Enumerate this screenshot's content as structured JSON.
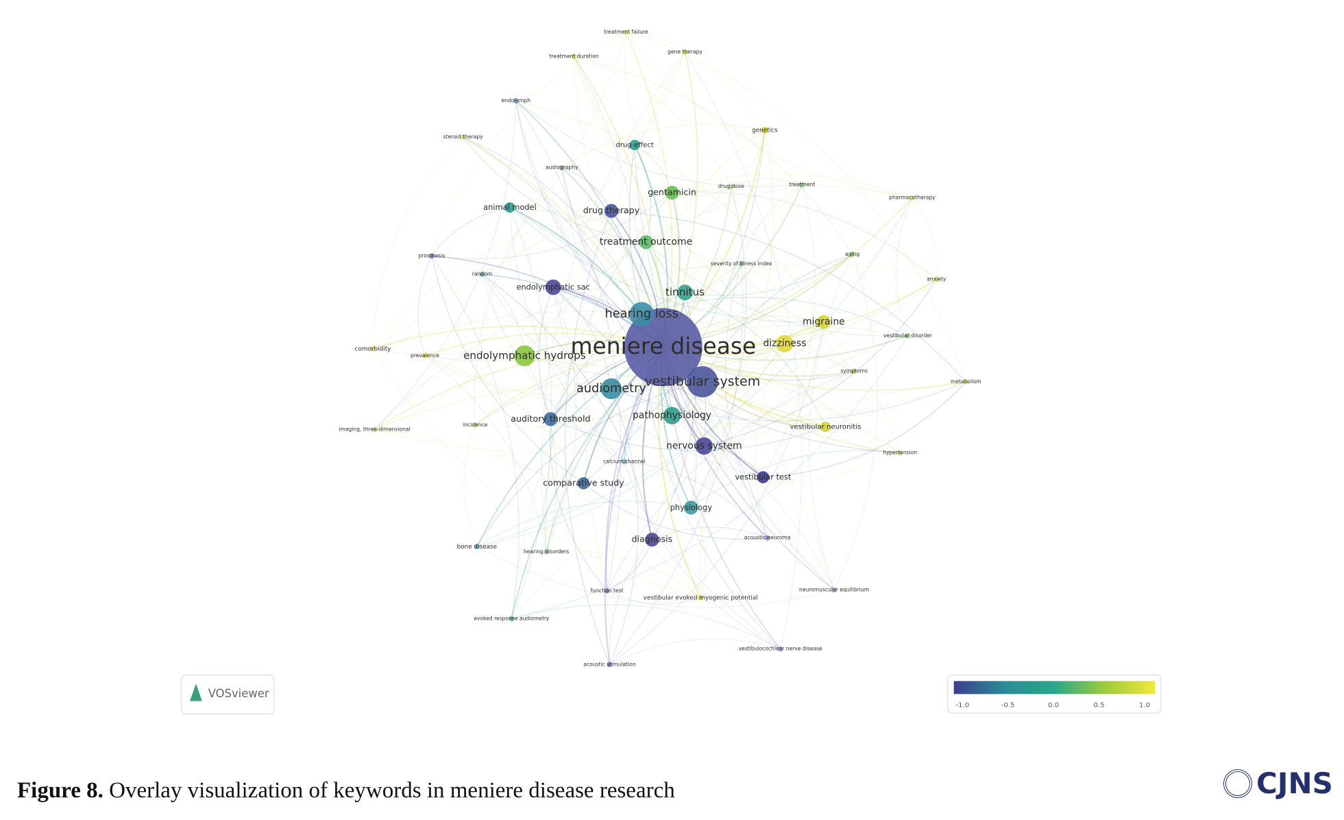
{
  "network": {
    "nodes": [
      {
        "label": "meniere disease",
        "color": "#5a5ca4"
      },
      {
        "label": "vestibular system",
        "color": "#4d569c"
      },
      {
        "label": "hearing loss",
        "color": "#3e8ca6"
      },
      {
        "label": "endolymphatic hydrops",
        "color": "#8cc63f"
      },
      {
        "label": "audiometry",
        "color": "#3a8d9f"
      },
      {
        "label": "dizziness",
        "color": "#e2d83a"
      },
      {
        "label": "migraine",
        "color": "#d8d53a"
      },
      {
        "label": "tinnitus",
        "color": "#36a38b"
      },
      {
        "label": "treatment outcome",
        "color": "#5cb86a"
      },
      {
        "label": "gentamicin",
        "color": "#68bd58"
      },
      {
        "label": "drug therapy",
        "color": "#4a52a0"
      },
      {
        "label": "animal model",
        "color": "#2f9b8f"
      },
      {
        "label": "endolymphatic sac",
        "color": "#4a4a98"
      },
      {
        "label": "auditory threshold",
        "color": "#3e6aa1"
      },
      {
        "label": "pathophysiology",
        "color": "#2e9d8b"
      },
      {
        "label": "nervous system",
        "color": "#4d4a95"
      },
      {
        "label": "vestibular test",
        "color": "#3c3c8a"
      },
      {
        "label": "comparative study",
        "color": "#3f6a99"
      },
      {
        "label": "physiology",
        "color": "#3e9aa0"
      },
      {
        "label": "diagnosis",
        "color": "#4d4a95"
      },
      {
        "label": "vestibular neuronitis",
        "color": "#d6d43a"
      },
      {
        "label": "drug effect",
        "color": "#2f9b8f"
      },
      {
        "label": "genetics",
        "color": "#d9d63a"
      },
      {
        "label": "treatment failure",
        "color": "#e6e27a"
      },
      {
        "label": "treatment duration",
        "color": "#d9e07a"
      },
      {
        "label": "gene therapy",
        "color": "#cfe07a"
      },
      {
        "label": "endolymph",
        "color": "#7aa8c8"
      },
      {
        "label": "steroid therapy",
        "color": "#e3e08a"
      },
      {
        "label": "audiography",
        "color": "#9cc8a0"
      },
      {
        "label": "drug dose",
        "color": "#b8d88a"
      },
      {
        "label": "treatment",
        "color": "#9fd08a"
      },
      {
        "label": "pharmacotherapy",
        "color": "#e3e07a"
      },
      {
        "label": "severity of illness index",
        "color": "#8fc89a"
      },
      {
        "label": "aging",
        "color": "#9cd07a"
      },
      {
        "label": "anxiety",
        "color": "#e6e07a"
      },
      {
        "label": "prosthesis",
        "color": "#8a88c8"
      },
      {
        "label": "random",
        "color": "#7ab0c0"
      },
      {
        "label": "comorbidity",
        "color": "#e6e06a"
      },
      {
        "label": "prevalence",
        "color": "#e6e06a"
      },
      {
        "label": "symptoms",
        "color": "#b8d87a"
      },
      {
        "label": "vestibular disorder",
        "color": "#9cd08a"
      },
      {
        "label": "metabolism",
        "color": "#e6e07a"
      },
      {
        "label": "hypertension",
        "color": "#e0e07a"
      },
      {
        "label": "imaging, three-dimensional",
        "color": "#e6e07a"
      },
      {
        "label": "incidence",
        "color": "#e0e08a"
      },
      {
        "label": "calcium channel",
        "color": "#7ab0c0"
      },
      {
        "label": "bone disease",
        "color": "#6ab0b0"
      },
      {
        "label": "hearing disorders",
        "color": "#9cc8b0"
      },
      {
        "label": "acoustic neuroma",
        "color": "#8a88c8"
      },
      {
        "label": "function test",
        "color": "#8a88c8"
      },
      {
        "label": "neuromuscular equilibrium",
        "color": "#b0b0d8"
      },
      {
        "label": "evoked response audiometry",
        "color": "#6ab0b0"
      },
      {
        "label": "vestibular evoked myogenic potential",
        "color": "#d6d43a"
      },
      {
        "label": "vestibulocochlear nerve disease",
        "color": "#a8a8d8"
      },
      {
        "label": "acoustic stimulation",
        "color": "#8a88c8"
      }
    ]
  },
  "legend": {
    "brand": "VOSviewer",
    "colors": [
      "#3b3f8c",
      "#2a8a98",
      "#2aa88a",
      "#9ccb3c",
      "#f2e83a"
    ],
    "ticks": [
      "-1.0",
      "-0.5",
      "0.0",
      "0.5",
      "1.0"
    ]
  },
  "caption": {
    "label": "Figure 8.",
    "text": "Overlay visualization of keywords in meniere disease research"
  },
  "logo": "CJNS"
}
